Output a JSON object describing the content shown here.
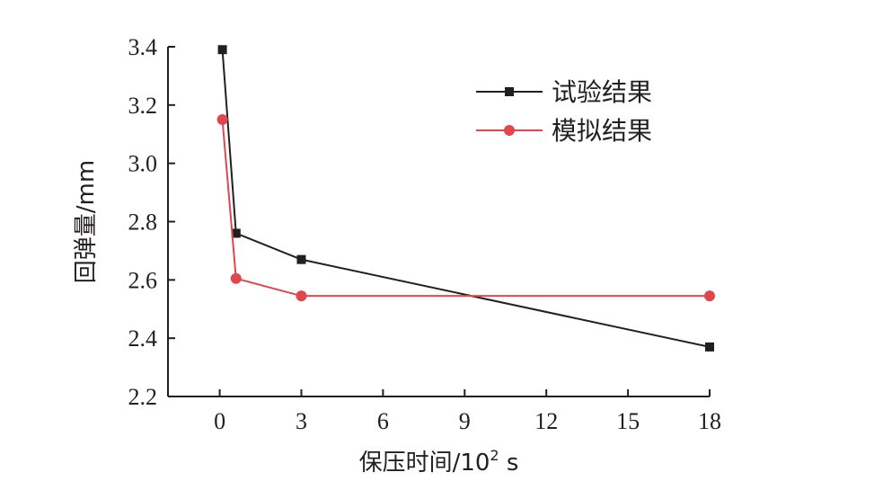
{
  "chart_data": {
    "type": "line",
    "xlabel": "保压时间/10",
    "xlabel_sup": "2",
    "xlabel_unit": " s",
    "ylabel": "回弹量/mm",
    "xlim": [
      -1.9,
      18
    ],
    "ylim": [
      2.2,
      3.4
    ],
    "xticks": [
      0,
      3,
      6,
      9,
      12,
      15,
      18
    ],
    "xtick_labels": [
      "0",
      "3",
      "6",
      "9",
      "12",
      "15",
      "18"
    ],
    "yticks": [
      2.2,
      2.4,
      2.6,
      2.8,
      3.0,
      3.2,
      3.4
    ],
    "ytick_labels": [
      "2.2",
      "2.4",
      "2.6",
      "2.8",
      "3.0",
      "3.2",
      "3.4"
    ],
    "legend_position": "top-right",
    "grid": false,
    "series": [
      {
        "name": "试验结果",
        "color": "#231f20",
        "marker": "square",
        "x": [
          0.1,
          0.6,
          3,
          18
        ],
        "y": [
          3.39,
          2.76,
          2.67,
          2.37
        ]
      },
      {
        "name": "模拟结果",
        "color": "#e0474c",
        "marker": "circle",
        "x": [
          0.1,
          0.6,
          3,
          18
        ],
        "y": [
          3.15,
          2.605,
          2.545,
          2.545
        ]
      }
    ]
  }
}
